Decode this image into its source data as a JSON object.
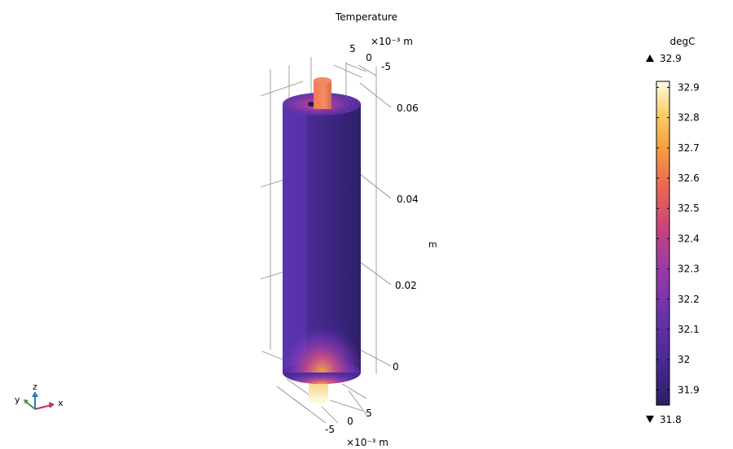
{
  "chart_data": {
    "type": "3d-surface",
    "title": "Temperature",
    "unit": "degC",
    "max_label": "32.9",
    "min_label": "31.8",
    "colorbar_ticks": [
      32.9,
      32.8,
      32.7,
      32.6,
      32.5,
      32.4,
      32.3,
      32.2,
      32.1,
      32,
      31.9
    ],
    "colorbar_range": [
      31.85,
      32.92
    ],
    "colormap": [
      "#2e1e63",
      "#5a2ca3",
      "#8a3aae",
      "#b9437f",
      "#e85a5a",
      "#f79a3e",
      "#f7d26a",
      "#fdfbe6"
    ],
    "z_axis": {
      "label": "m",
      "ticks": [
        "0.06",
        "0.04",
        "0.02",
        "0"
      ]
    },
    "top_axis": {
      "exponent_label": "×10⁻³ m",
      "ticks": [
        "5",
        "0",
        "-5"
      ]
    },
    "bottom_axis": {
      "exponent_label": "×10⁻³ m",
      "ticks": [
        "5",
        "0",
        "-5"
      ]
    }
  },
  "triad": {
    "z": "z",
    "y": "y",
    "x": "x"
  }
}
